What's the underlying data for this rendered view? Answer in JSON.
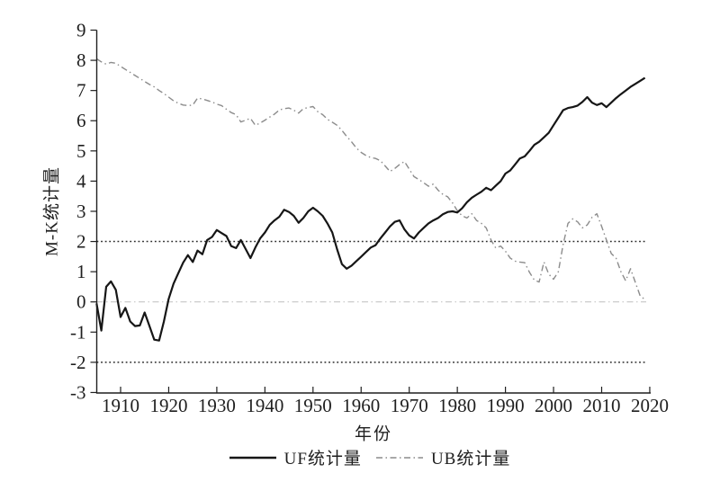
{
  "chart_data": {
    "type": "line",
    "title": "",
    "xlabel": "年份",
    "ylabel": "M-K统计量",
    "xlim": [
      1904.5,
      2020.5
    ],
    "ylim": [
      -3,
      9
    ],
    "xticks": [
      1910,
      1920,
      1930,
      1940,
      1950,
      1960,
      1970,
      1980,
      1990,
      2000,
      2010,
      2020
    ],
    "yticks": [
      -3,
      -2,
      -1,
      0,
      1,
      2,
      3,
      4,
      5,
      6,
      7,
      8,
      9
    ],
    "grid": false,
    "legend_position": "bottom-center",
    "axis_color": "#1f1f1f",
    "x": [
      1905,
      1906,
      1907,
      1908,
      1909,
      1910,
      1911,
      1912,
      1913,
      1914,
      1915,
      1916,
      1917,
      1918,
      1919,
      1920,
      1921,
      1922,
      1923,
      1924,
      1925,
      1926,
      1927,
      1928,
      1929,
      1930,
      1931,
      1932,
      1933,
      1934,
      1935,
      1936,
      1937,
      1938,
      1939,
      1940,
      1941,
      1942,
      1943,
      1944,
      1945,
      1946,
      1947,
      1948,
      1949,
      1950,
      1951,
      1952,
      1953,
      1954,
      1955,
      1956,
      1957,
      1958,
      1959,
      1960,
      1961,
      1962,
      1963,
      1964,
      1965,
      1966,
      1967,
      1968,
      1969,
      1970,
      1971,
      1972,
      1973,
      1974,
      1975,
      1976,
      1977,
      1978,
      1979,
      1980,
      1981,
      1982,
      1983,
      1984,
      1985,
      1986,
      1987,
      1988,
      1989,
      1990,
      1991,
      1992,
      1993,
      1994,
      1995,
      1996,
      1997,
      1998,
      1999,
      2000,
      2001,
      2002,
      2003,
      2004,
      2005,
      2006,
      2007,
      2008,
      2009,
      2010,
      2011,
      2012,
      2013,
      2014,
      2015,
      2016,
      2017,
      2018,
      2019
    ],
    "series": [
      {
        "name": "UF统计量",
        "style": "solid",
        "color": "#161616",
        "width": 2.2,
        "values": [
          -0.05,
          -0.95,
          0.5,
          0.68,
          0.4,
          -0.5,
          -0.2,
          -0.65,
          -0.8,
          -0.78,
          -0.35,
          -0.8,
          -1.25,
          -1.28,
          -0.65,
          0.1,
          0.6,
          0.95,
          1.3,
          1.55,
          1.32,
          1.7,
          1.58,
          2.05,
          2.15,
          2.38,
          2.28,
          2.18,
          1.85,
          1.78,
          2.05,
          1.75,
          1.45,
          1.8,
          2.1,
          2.3,
          2.55,
          2.7,
          2.82,
          3.05,
          2.98,
          2.85,
          2.62,
          2.78,
          3.0,
          3.12,
          3.0,
          2.85,
          2.6,
          2.3,
          1.75,
          1.25,
          1.1,
          1.2,
          1.35,
          1.5,
          1.65,
          1.8,
          1.88,
          2.1,
          2.3,
          2.5,
          2.65,
          2.7,
          2.4,
          2.2,
          2.1,
          2.3,
          2.45,
          2.6,
          2.7,
          2.78,
          2.9,
          2.98,
          3.0,
          2.96,
          3.1,
          3.3,
          3.45,
          3.55,
          3.65,
          3.78,
          3.7,
          3.85,
          4.0,
          4.25,
          4.35,
          4.55,
          4.75,
          4.82,
          5.0,
          5.2,
          5.3,
          5.45,
          5.6,
          5.85,
          6.1,
          6.35,
          6.42,
          6.45,
          6.5,
          6.62,
          6.78,
          6.6,
          6.52,
          6.58,
          6.45,
          6.6,
          6.75,
          6.88,
          7.0,
          7.12,
          7.22,
          7.32,
          7.42
        ]
      },
      {
        "name": "UB统计量",
        "style": "dashdot",
        "color": "#8c8c8c",
        "width": 1.4,
        "values": [
          8.05,
          7.95,
          7.87,
          7.93,
          7.9,
          7.8,
          7.7,
          7.6,
          7.5,
          7.4,
          7.3,
          7.2,
          7.12,
          7.0,
          6.9,
          6.78,
          6.66,
          6.58,
          6.52,
          6.5,
          6.52,
          6.75,
          6.72,
          6.67,
          6.62,
          6.55,
          6.5,
          6.38,
          6.27,
          6.2,
          5.96,
          6.02,
          6.08,
          5.85,
          5.92,
          6.02,
          6.12,
          6.22,
          6.36,
          6.4,
          6.42,
          6.35,
          6.25,
          6.4,
          6.44,
          6.47,
          6.3,
          6.2,
          6.05,
          5.95,
          5.85,
          5.68,
          5.48,
          5.3,
          5.1,
          4.95,
          4.85,
          4.78,
          4.75,
          4.68,
          4.5,
          4.32,
          4.42,
          4.55,
          4.65,
          4.4,
          4.15,
          4.05,
          3.95,
          3.83,
          3.9,
          3.7,
          3.56,
          3.48,
          3.28,
          3.02,
          2.85,
          2.78,
          2.92,
          2.7,
          2.6,
          2.45,
          2.05,
          1.78,
          1.85,
          1.68,
          1.45,
          1.35,
          1.32,
          1.3,
          0.98,
          0.72,
          0.66,
          1.32,
          0.92,
          0.75,
          1.0,
          1.9,
          2.6,
          2.75,
          2.65,
          2.45,
          2.55,
          2.8,
          2.92,
          2.5,
          2.05,
          1.6,
          1.45,
          1.0,
          0.7,
          1.1,
          0.65,
          0.2,
          0.08
        ]
      }
    ],
    "reference_lines": [
      {
        "value": 2,
        "style": "dotted",
        "color": "#2a2a2a",
        "width": 1.5
      },
      {
        "value": -2,
        "style": "dotted",
        "color": "#2a2a2a",
        "width": 1.5
      },
      {
        "value": 0,
        "style": "dashdot",
        "color": "#c6c6c6",
        "width": 1.1
      }
    ]
  }
}
